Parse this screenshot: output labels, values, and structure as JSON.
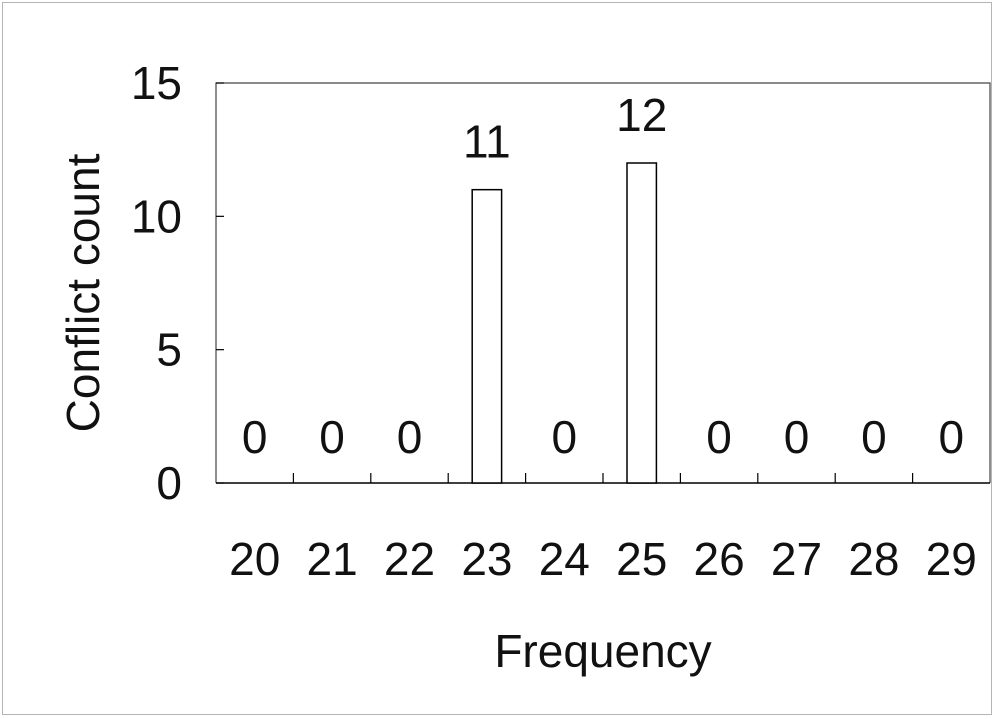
{
  "chart_data": {
    "type": "bar",
    "xlabel": "Frequency",
    "ylabel": "Conflict count",
    "categories": [
      "20",
      "21",
      "22",
      "23",
      "24",
      "25",
      "26",
      "27",
      "28",
      "29"
    ],
    "values": [
      0,
      0,
      0,
      11,
      0,
      12,
      0,
      0,
      0,
      0
    ],
    "data_labels": [
      "0",
      "0",
      "0",
      "11",
      "0",
      "12",
      "0",
      "0",
      "0",
      "0"
    ],
    "ylim": [
      0,
      15
    ],
    "yticks": [
      "0",
      "5",
      "10",
      "15"
    ],
    "grid": false,
    "legend": "none",
    "colors": {
      "bar_fill": "#ffffff",
      "bar_stroke": "#000000",
      "text": "#111111"
    }
  }
}
